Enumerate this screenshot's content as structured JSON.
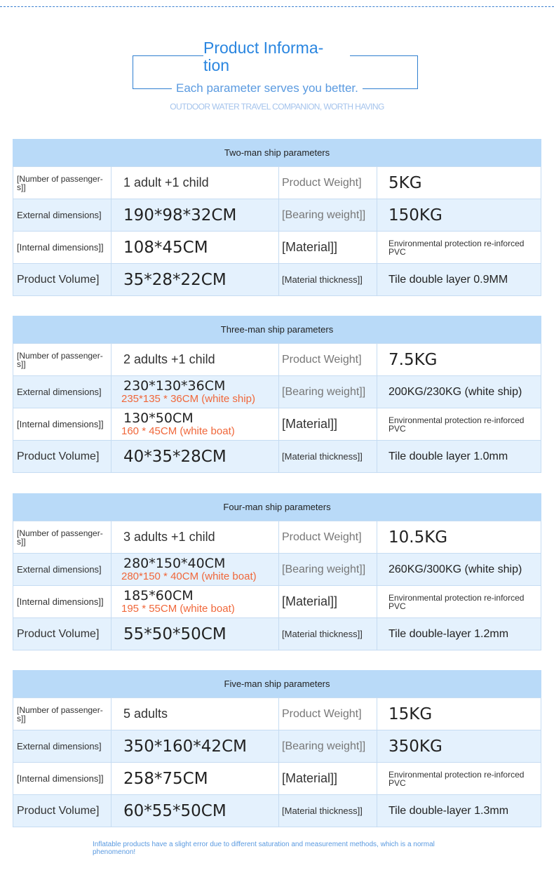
{
  "header": {
    "title": "Product Informa-\ntion",
    "subtitle": "Each parameter serves you better.",
    "tagline": "OUTDOOR WATER TRAVEL COMPANION, WORTH HAVING"
  },
  "colors": {
    "accent": "#2a86e0",
    "header_bg": "#b9daf8",
    "row_alt": "#e4f1fd",
    "highlight": "#f0673a"
  },
  "labels": {
    "passengers": "[Number of passenger-s]]",
    "external": "External dimensions]",
    "internal": "[Internal dimensions]]",
    "volume": "Product Volume]",
    "weight": "Product Weight]",
    "bearing": "[Bearing weight]]",
    "material": "[Material]]",
    "thickness": "[Material thickness]]"
  },
  "tables": [
    {
      "title": "Two-man ship parameters",
      "passengers": "1 adult +1 child",
      "external": "190*98*32CM",
      "external_alt": "",
      "internal": "108*45CM",
      "internal_alt": "",
      "volume": "35*28*22CM",
      "weight": "5KG",
      "bearing": "150KG",
      "material": "Environmental protection re-inforced PVC",
      "thickness": "Tile double layer 0.9MM"
    },
    {
      "title": "Three-man ship parameters",
      "passengers": "2 adults +1 child",
      "external": "230*130*36CM",
      "external_alt": "235*135 * 36CM (white ship)",
      "internal": "130*50CM",
      "internal_alt": "160 * 45CM (white boat)",
      "volume": "40*35*28CM",
      "weight": "7.5KG",
      "bearing": "200KG/230KG (white ship)",
      "material": "Environmental protection re-inforced PVC",
      "thickness": "Tile double layer 1.0mm"
    },
    {
      "title": "Four-man ship parameters",
      "passengers": "3 adults +1 child",
      "external": "280*150*40CM",
      "external_alt": "280*150 * 40CM (white boat)",
      "internal": "185*60CM",
      "internal_alt": "195 * 55CM (white boat)",
      "volume": "55*50*50CM",
      "weight": "10.5KG",
      "bearing": "260KG/300KG (white ship)",
      "material": "Environmental protection re-inforced PVC",
      "thickness": "Tile double-layer 1.2mm"
    },
    {
      "title": "Five-man ship parameters",
      "passengers": "5 adults",
      "external": "350*160*42CM",
      "external_alt": "",
      "internal": "258*75CM",
      "internal_alt": "",
      "volume": "60*55*50CM",
      "weight": "15KG",
      "bearing": "350KG",
      "material": "Environmental protection re-inforced PVC",
      "thickness": "Tile double-layer 1.3mm"
    }
  ],
  "footer": {
    "note": "Inflatable products have a slight error due to different saturation and measurement methods, which is a normal phenomenon!"
  }
}
